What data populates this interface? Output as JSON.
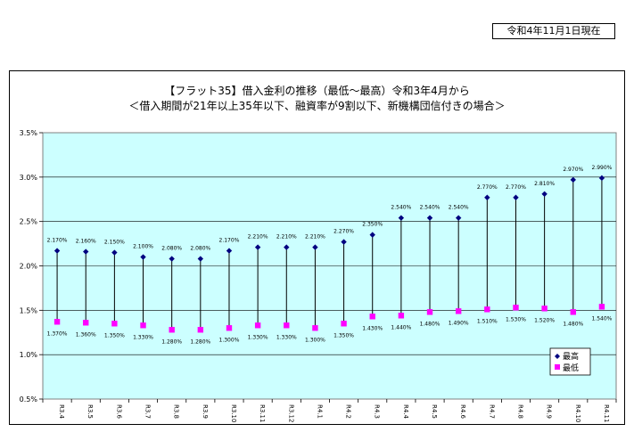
{
  "date_label": "令和4年11月1日現在",
  "chart_data": {
    "type": "scatter",
    "title": "【フラット35】借入金利の推移（最低～最高）令和3年4月から",
    "subtitle": "＜借入期間が21年以上35年以下、融資率が9割以下、新機構団信付きの場合＞",
    "categories": [
      "R3.4",
      "R3.5",
      "R3.6",
      "R3.7",
      "R3.8",
      "R3.9",
      "R3.10",
      "R3.11",
      "R3.12",
      "R4.1",
      "R4.2",
      "R4.3",
      "R4.4",
      "R4.5",
      "R4.6",
      "R4.7",
      "R4.8",
      "R4.9",
      "R4.10",
      "R4.11"
    ],
    "series": [
      {
        "name": "最高",
        "color": "#000080",
        "marker": "diamond",
        "values": [
          2.17,
          2.16,
          2.15,
          2.1,
          2.08,
          2.08,
          2.17,
          2.21,
          2.21,
          2.21,
          2.27,
          2.35,
          2.54,
          2.54,
          2.54,
          2.77,
          2.77,
          2.81,
          2.97,
          2.99
        ],
        "labels": [
          "2.170%",
          "2.160%",
          "2.150%",
          "2.100%",
          "2.080%",
          "2.080%",
          "2.170%",
          "2.210%",
          "2.210%",
          "2.210%",
          "2.270%",
          "2.350%",
          "2.540%",
          "2.540%",
          "2.540%",
          "2.770%",
          "2.770%",
          "2.810%",
          "2.970%",
          "2.990%"
        ]
      },
      {
        "name": "最低",
        "color": "#ff00ff",
        "marker": "square",
        "values": [
          1.37,
          1.36,
          1.35,
          1.33,
          1.28,
          1.28,
          1.3,
          1.33,
          1.33,
          1.3,
          1.35,
          1.43,
          1.44,
          1.48,
          1.49,
          1.51,
          1.53,
          1.52,
          1.48,
          1.54
        ],
        "labels": [
          "1.370%",
          "1.360%",
          "1.350%",
          "1.330%",
          "1.280%",
          "1.280%",
          "1.300%",
          "1.330%",
          "1.330%",
          "1.300%",
          "1.350%",
          "1.430%",
          "1.440%",
          "1.480%",
          "1.490%",
          "1.510%",
          "1.530%",
          "1.520%",
          "1.480%",
          "1.540%"
        ]
      }
    ],
    "ylim": [
      0.5,
      3.5
    ],
    "yticks": [
      "0.5%",
      "1.0%",
      "1.5%",
      "2.0%",
      "2.5%",
      "3.0%",
      "3.5%"
    ],
    "ytick_values": [
      0.5,
      1.0,
      1.5,
      2.0,
      2.5,
      3.0,
      3.5
    ],
    "plot_background": "#ccffff",
    "grid": true,
    "legend_position": "bottom-right",
    "range_line_color": "#000000"
  }
}
